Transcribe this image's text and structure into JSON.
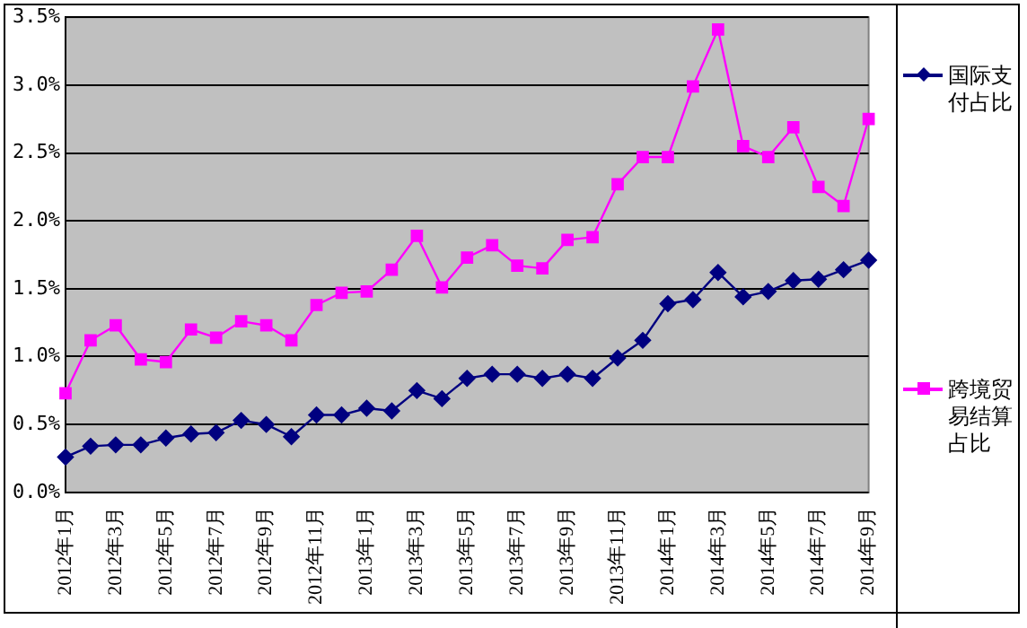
{
  "chart_data": {
    "type": "line",
    "categories": [
      "2012年1月",
      null,
      "2012年3月",
      null,
      "2012年5月",
      null,
      "2012年7月",
      null,
      "2012年9月",
      null,
      "2012年11月",
      null,
      "2013年1月",
      null,
      "2013年3月",
      null,
      "2013年5月",
      null,
      "2013年7月",
      null,
      "2013年9月",
      null,
      "2013年11月",
      null,
      "2014年1月",
      null,
      "2014年3月",
      null,
      "2014年5月",
      null,
      "2014年7月",
      null,
      "2014年9月"
    ],
    "series": [
      {
        "name": "国际支付占比",
        "color": "#000080",
        "marker": "diamond",
        "values": [
          0.26,
          0.34,
          0.35,
          0.35,
          0.4,
          0.43,
          0.44,
          0.53,
          0.5,
          0.41,
          0.57,
          0.57,
          0.62,
          0.6,
          0.75,
          0.69,
          0.84,
          0.87,
          0.87,
          0.84,
          0.87,
          0.84,
          0.99,
          1.12,
          1.39,
          1.42,
          1.62,
          1.44,
          1.48,
          1.56,
          1.57,
          1.64,
          1.71
        ]
      },
      {
        "name": "跨境贸易结算占比",
        "color": "#ff00ff",
        "marker": "square",
        "values": [
          0.73,
          1.12,
          1.23,
          0.98,
          0.96,
          1.2,
          1.14,
          1.26,
          1.23,
          1.12,
          1.38,
          1.47,
          1.48,
          1.64,
          1.89,
          1.51,
          1.73,
          1.82,
          1.67,
          1.65,
          1.86,
          1.88,
          2.27,
          2.47,
          2.47,
          2.99,
          3.41,
          2.55,
          2.47,
          2.69,
          2.25,
          2.11,
          2.75
        ]
      }
    ],
    "ylim": [
      0,
      3.5
    ],
    "yticks": [
      {
        "value": 0,
        "label": "0.0%"
      },
      {
        "value": 0.5,
        "label": "0.5%"
      },
      {
        "value": 1,
        "label": "1.0%"
      },
      {
        "value": 1.5,
        "label": "1.5%"
      },
      {
        "value": 2,
        "label": "2.0%"
      },
      {
        "value": 2.5,
        "label": "2.5%"
      },
      {
        "value": 3,
        "label": "3.0%"
      },
      {
        "value": 3.5,
        "label": "3.5%"
      }
    ],
    "grid": "y",
    "legend": "right"
  }
}
